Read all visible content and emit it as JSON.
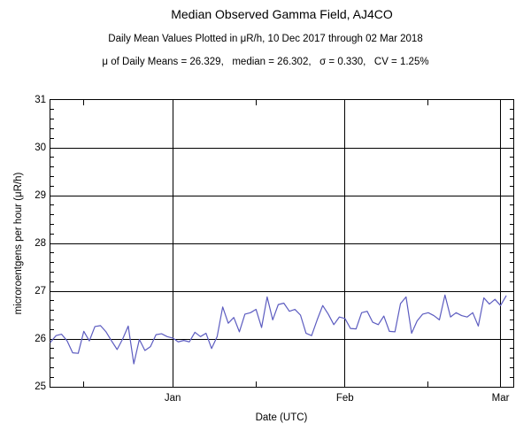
{
  "chart_data": {
    "type": "line",
    "title": "Median Observed Gamma Field, AJ4CO",
    "subtitle": "Daily Mean Values Plotted in μR/h, 10 Dec 2017 through 02 Mar 2018",
    "stats_text": "μ of Daily Means = 26.329,   median = 26.302,   σ = 0.330,   CV = 1.25%",
    "stats": {
      "mean_of_daily_means": 26.329,
      "median": 26.302,
      "sigma": 0.33,
      "cv_percent": 1.25
    },
    "xlabel": "Date (UTC)",
    "ylabel": "microroentgens per hour (μR/h)",
    "ylim": [
      25,
      31
    ],
    "y_major_ticks": [
      25,
      26,
      27,
      28,
      29,
      30,
      31
    ],
    "y_minor_step": 0.2,
    "x_start_date": "10 Dec 2017",
    "x_end_date": "02 Mar 2018",
    "x_total_days": 83.3,
    "x_major_ticks": [
      {
        "label": "Jan",
        "day": 22
      },
      {
        "label": "Feb",
        "day": 53
      },
      {
        "label": "Mar",
        "day": 81
      }
    ],
    "x_minor_tick_days": [
      6,
      37,
      68
    ],
    "grid": true,
    "line_color": "#5c5cc0",
    "series": [
      {
        "name": "daily-mean-gamma",
        "start_day": 0,
        "values": [
          25.93,
          26.07,
          26.1,
          25.96,
          25.71,
          25.7,
          26.16,
          25.96,
          26.26,
          26.28,
          26.15,
          25.96,
          25.78,
          26.0,
          26.27,
          25.48,
          25.99,
          25.76,
          25.84,
          26.09,
          26.11,
          26.05,
          26.02,
          25.94,
          25.97,
          25.94,
          26.14,
          26.05,
          26.12,
          25.8,
          26.05,
          26.67,
          26.33,
          26.45,
          26.15,
          26.52,
          26.55,
          26.62,
          26.24,
          26.88,
          26.4,
          26.72,
          26.75,
          26.58,
          26.62,
          26.5,
          26.12,
          26.07,
          26.4,
          26.7,
          26.52,
          26.3,
          26.46,
          26.43,
          26.22,
          26.21,
          26.55,
          26.58,
          26.35,
          26.3,
          26.48,
          26.16,
          26.15,
          26.74,
          26.88,
          26.12,
          26.38,
          26.52,
          26.55,
          26.49,
          26.4,
          26.92,
          26.46,
          26.55,
          26.49,
          26.46,
          26.55,
          26.27,
          26.86,
          26.73,
          26.83,
          26.7,
          26.9
        ]
      }
    ]
  }
}
